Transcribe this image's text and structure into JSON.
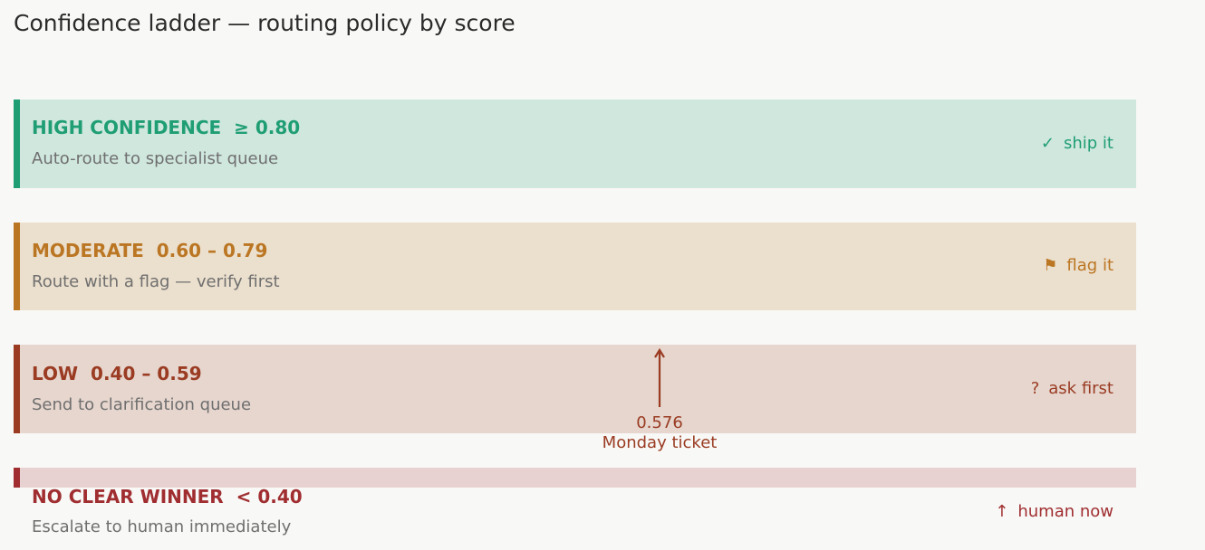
{
  "title": "Confidence ladder — routing policy by score",
  "colors": {
    "background": "#f8f8f6",
    "high": "#1f9e74",
    "moderate": "#bb7623",
    "low": "#9a3b22",
    "none": "#a02e31",
    "description_text": "#6f6f6f"
  },
  "tiers": [
    {
      "name": "HIGH CONFIDENCE",
      "range": "≥ 0.80",
      "description": "Auto-route to specialist queue",
      "action_icon": "✓",
      "action_icon_name": "check-icon",
      "action_label": "ship it"
    },
    {
      "name": "MODERATE",
      "range": "0.60 – 0.79",
      "description": "Route with a flag — verify first",
      "action_icon": "⚑",
      "action_icon_name": "flag-icon",
      "action_label": "flag it"
    },
    {
      "name": "LOW",
      "range": "0.40 – 0.59",
      "description": "Send to clarification queue",
      "action_icon": "?",
      "action_icon_name": "question-icon",
      "action_label": "ask first"
    },
    {
      "name": "NO CLEAR WINNER",
      "range": "< 0.40",
      "description": "Escalate to human immediately",
      "action_icon": "↑",
      "action_icon_name": "up-arrow-icon",
      "action_label": "human now"
    }
  ],
  "marker": {
    "score": "0.576",
    "label": "Monday ticket",
    "tier": "LOW",
    "icon_name": "up-arrow-icon"
  }
}
